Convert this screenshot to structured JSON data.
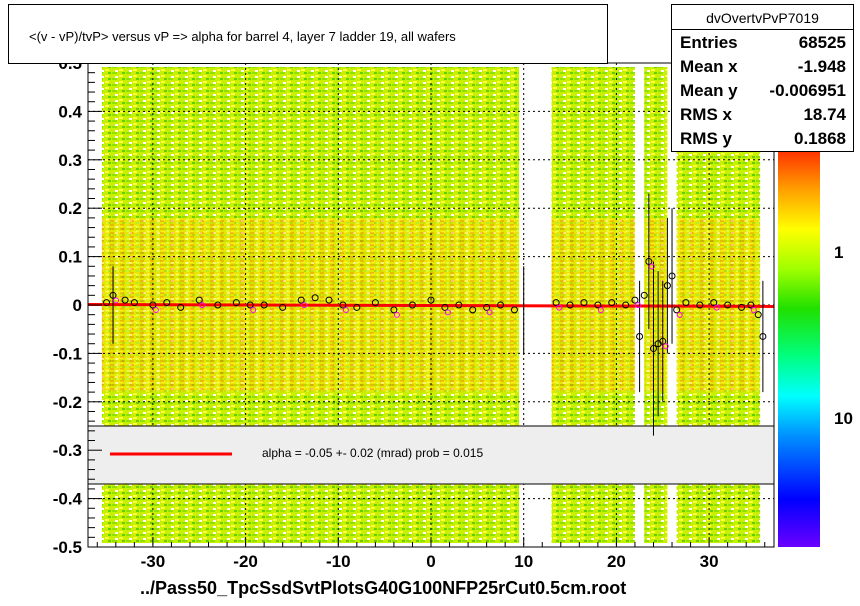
{
  "title": "<(v - vP)/tvP>  versus   vP => alpha for barrel 4, layer 7 ladder 19, all wafers",
  "stats": {
    "name": "dvOvertvPvP7019",
    "rows": [
      {
        "key": "Entries",
        "value": "68525"
      },
      {
        "key": "Mean x",
        "value": "-1.948"
      },
      {
        "key": "Mean y",
        "value": "-0.006951"
      },
      {
        "key": "RMS x",
        "value": "18.74"
      },
      {
        "key": "RMS y",
        "value": "0.1868"
      }
    ]
  },
  "fit_label": "alpha =   -0.05 +-  0.02 (mrad) prob = 0.015",
  "file_label": "../Pass50_TpcSsdSvtPlotsG40G100NFP25rCut0.5cm.root",
  "colors": {
    "fit_line": "#ff0000",
    "data_marker": "#000000",
    "alt_marker": "#ff00ff"
  },
  "chart_data": {
    "type": "scatter",
    "xlim": [
      -37,
      37
    ],
    "ylim": [
      -0.5,
      0.5
    ],
    "x_ticks": [
      -30,
      -20,
      -10,
      0,
      10,
      20,
      30
    ],
    "y_ticks": [
      -0.5,
      -0.4,
      -0.3,
      -0.2,
      -0.1,
      0,
      0.1,
      0.2,
      0.3,
      0.4,
      0.5
    ],
    "y_tick_labels": [
      "-0.5",
      "-0.4",
      "-0.3",
      "-0.2",
      "-0.1",
      "0",
      "0.1",
      "0.2",
      "0.3",
      "0.4",
      "0.5"
    ],
    "x_tick_labels": [
      "-30",
      "-20",
      "-10",
      "0",
      "10",
      "20",
      "30"
    ],
    "colorbar_labels": [
      "1",
      "10"
    ],
    "grid": true,
    "density_bands": [
      {
        "x": [
          -35.5,
          -20.5
        ]
      },
      {
        "x": [
          -20.5,
          -15.5
        ]
      },
      {
        "x": [
          -15.5,
          -4.5
        ]
      },
      {
        "x": [
          -4.5,
          9.5
        ]
      },
      {
        "x": [
          13.0,
          22.0
        ]
      },
      {
        "x": [
          23.0,
          25.5
        ]
      },
      {
        "x": [
          26.5,
          35.5
        ]
      }
    ],
    "fit": {
      "x": [
        -37,
        37
      ],
      "y": [
        0.001,
        -0.003
      ]
    },
    "profile_points": [
      {
        "x": -35.0,
        "y": 0.005
      },
      {
        "x": -34.3,
        "y": 0.02
      },
      {
        "x": -33.0,
        "y": 0.01
      },
      {
        "x": -32.0,
        "y": 0.005
      },
      {
        "x": -30.0,
        "y": 0.0
      },
      {
        "x": -28.5,
        "y": 0.005
      },
      {
        "x": -27.0,
        "y": -0.005
      },
      {
        "x": -25.0,
        "y": 0.01
      },
      {
        "x": -23.0,
        "y": 0.0
      },
      {
        "x": -21.0,
        "y": 0.005
      },
      {
        "x": -19.5,
        "y": 0.0
      },
      {
        "x": -18.0,
        "y": 0.0
      },
      {
        "x": -16.0,
        "y": -0.005
      },
      {
        "x": -14.0,
        "y": 0.01
      },
      {
        "x": -12.5,
        "y": 0.015
      },
      {
        "x": -11.0,
        "y": 0.01
      },
      {
        "x": -9.5,
        "y": 0.0
      },
      {
        "x": -8.0,
        "y": -0.005
      },
      {
        "x": -6.0,
        "y": 0.005
      },
      {
        "x": -4.0,
        "y": -0.01
      },
      {
        "x": -2.0,
        "y": 0.0
      },
      {
        "x": 0.0,
        "y": 0.01
      },
      {
        "x": 1.5,
        "y": -0.005
      },
      {
        "x": 3.0,
        "y": 0.0
      },
      {
        "x": 4.5,
        "y": -0.01
      },
      {
        "x": 6.0,
        "y": -0.005
      },
      {
        "x": 7.5,
        "y": 0.0
      },
      {
        "x": 9.0,
        "y": -0.01
      },
      {
        "x": 13.5,
        "y": 0.005
      },
      {
        "x": 15.0,
        "y": 0.0
      },
      {
        "x": 16.5,
        "y": 0.005
      },
      {
        "x": 18.0,
        "y": 0.0
      },
      {
        "x": 19.5,
        "y": 0.005
      },
      {
        "x": 21.0,
        "y": 0.0
      },
      {
        "x": 22.0,
        "y": 0.01
      },
      {
        "x": 22.5,
        "y": -0.065
      },
      {
        "x": 23.0,
        "y": 0.02
      },
      {
        "x": 23.5,
        "y": 0.09
      },
      {
        "x": 24.0,
        "y": -0.09
      },
      {
        "x": 24.5,
        "y": -0.08
      },
      {
        "x": 25.0,
        "y": -0.075
      },
      {
        "x": 25.5,
        "y": 0.04
      },
      {
        "x": 26.0,
        "y": 0.06
      },
      {
        "x": 26.5,
        "y": -0.01
      },
      {
        "x": 27.5,
        "y": 0.005
      },
      {
        "x": 29.0,
        "y": 0.0
      },
      {
        "x": 30.5,
        "y": 0.005
      },
      {
        "x": 32.0,
        "y": 0.0
      },
      {
        "x": 33.5,
        "y": -0.005
      },
      {
        "x": 34.5,
        "y": 0.0
      },
      {
        "x": 35.3,
        "y": -0.02
      },
      {
        "x": 35.8,
        "y": -0.065
      }
    ],
    "error_bars": [
      {
        "x": -34.3,
        "lo": -0.08,
        "hi": 0.08
      },
      {
        "x": 10.0,
        "lo": -0.1,
        "hi": 0.08
      },
      {
        "x": 22.5,
        "lo": -0.18,
        "hi": 0.05
      },
      {
        "x": 23.5,
        "lo": -0.05,
        "hi": 0.23
      },
      {
        "x": 24.0,
        "lo": -0.27,
        "hi": 0.09
      },
      {
        "x": 24.5,
        "lo": -0.23,
        "hi": 0.07
      },
      {
        "x": 25.0,
        "lo": -0.2,
        "hi": 0.05
      },
      {
        "x": 25.5,
        "lo": -0.1,
        "hi": 0.18
      },
      {
        "x": 26.0,
        "lo": -0.08,
        "hi": 0.2
      },
      {
        "x": 35.8,
        "lo": -0.18,
        "hi": 0.05
      }
    ]
  }
}
